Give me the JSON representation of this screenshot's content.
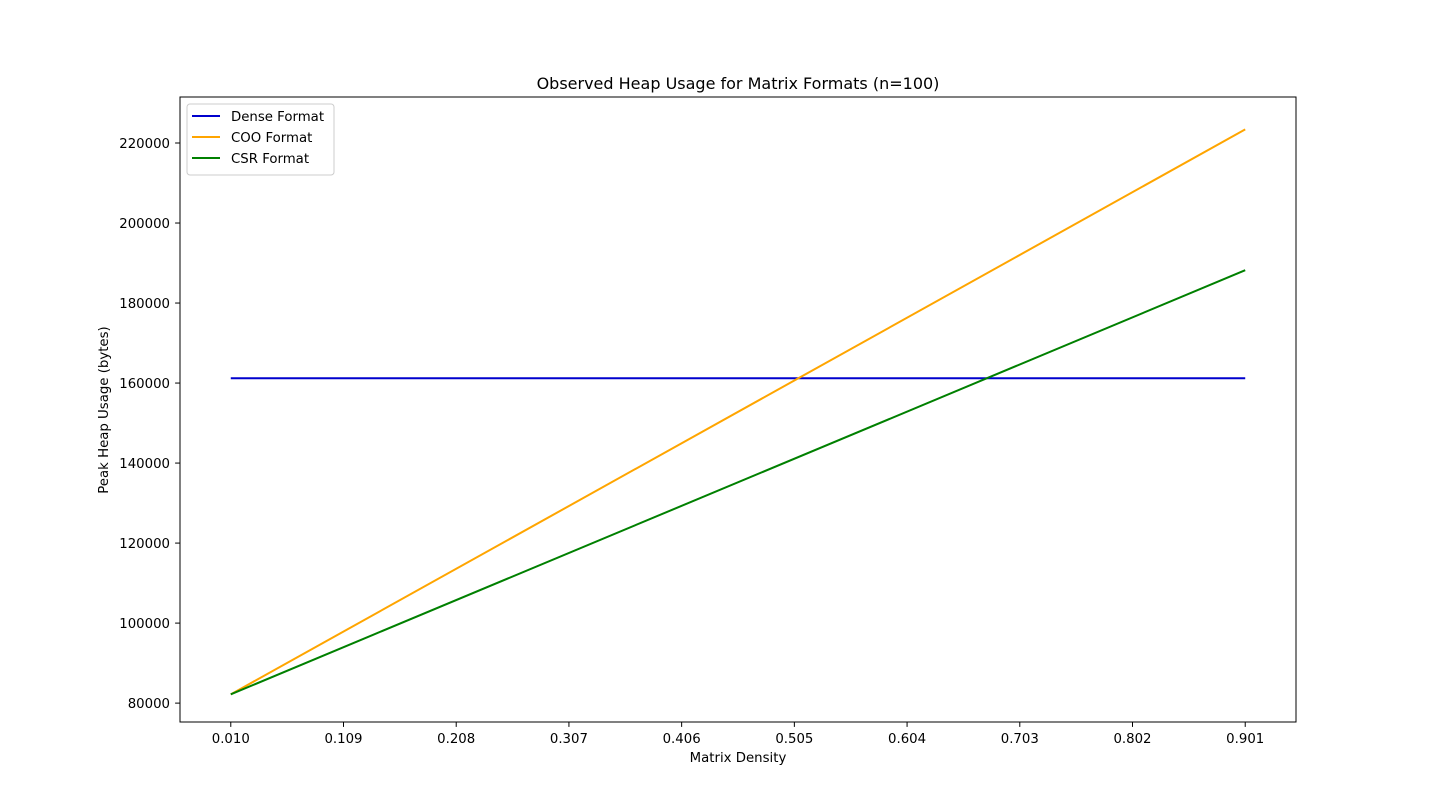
{
  "chart_data": {
    "type": "line",
    "title": "Observed Heap Usage for Matrix Formats (n=100)",
    "xlabel": "Matrix Density",
    "ylabel": "Peak Heap Usage (bytes)",
    "x_ticks": [
      "0.010",
      "0.109",
      "0.208",
      "0.307",
      "0.406",
      "0.505",
      "0.604",
      "0.703",
      "0.802",
      "0.901"
    ],
    "y_ticks": [
      "80000",
      "100000",
      "120000",
      "140000",
      "160000",
      "180000",
      "200000",
      "220000"
    ],
    "xlim": [
      -0.0346,
      0.9456
    ],
    "ylim": [
      75280,
      231500
    ],
    "x": [
      0.01,
      0.901
    ],
    "series": [
      {
        "name": "Dense Format",
        "color": "#0000cd",
        "values": [
          161200,
          161200
        ]
      },
      {
        "name": "COO Format",
        "color": "#ffa500",
        "values": [
          82200,
          223400
        ]
      },
      {
        "name": "CSR Format",
        "color": "#008000",
        "values": [
          82200,
          188200
        ]
      }
    ],
    "grid": false,
    "legend_position": "top-left"
  }
}
